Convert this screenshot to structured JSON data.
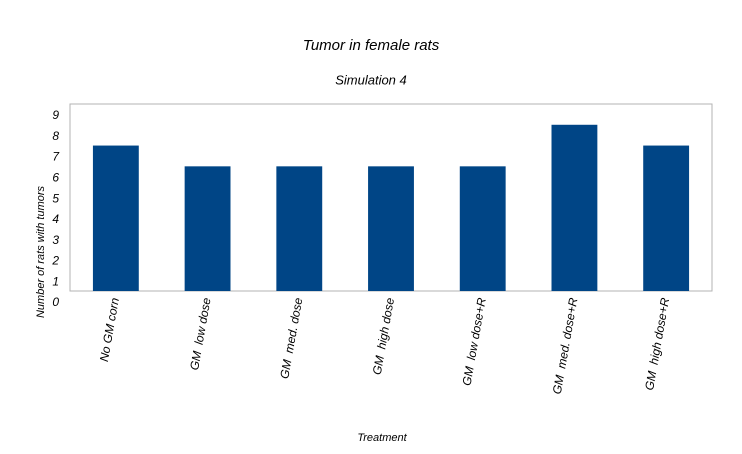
{
  "chart_data": {
    "type": "bar",
    "title": "Tumor in female rats",
    "subtitle": "Simulation 4",
    "x_label": "Treatment",
    "y_label": "Number of rats with tumors",
    "categories": [
      "No GM corn",
      "GM  low dose",
      "GM  med. dose",
      "GM  high dose",
      "GM  low dose+R",
      "GM  med. dose+R",
      "GM  high dose+R"
    ],
    "values": [
      7,
      6,
      6,
      6,
      6,
      8,
      7
    ],
    "color": "#004586",
    "ylim": [
      0,
      9
    ],
    "yticks": [
      0,
      1,
      2,
      3,
      4,
      5,
      6,
      7,
      8,
      9
    ],
    "grid": false
  }
}
